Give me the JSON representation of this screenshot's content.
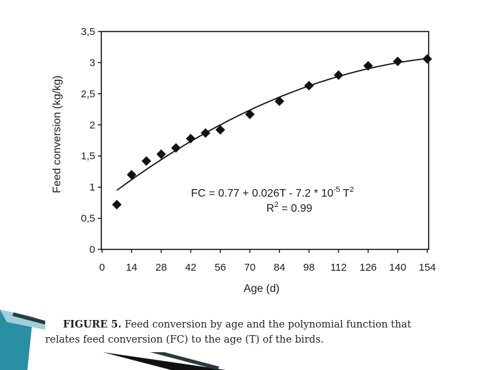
{
  "caption": {
    "figure_label": "FIGURE 5.",
    "line1": " Feed conversion by age and the polynomial function that",
    "line2": "relates feed conversion (FC)  to the age (T) of the birds."
  },
  "colors": {
    "accent_teal": "#2a8fa3",
    "accent_light": "#9fd0dc",
    "ink": "#111111"
  },
  "chart_data": {
    "type": "scatter",
    "title": "",
    "xlabel": "Age (d)",
    "ylabel": "Feed conversion (kg/kg)",
    "xlim": [
      0,
      154
    ],
    "ylim": [
      0,
      3.5
    ],
    "x_ticks": [
      0,
      14,
      28,
      42,
      56,
      70,
      84,
      98,
      112,
      126,
      140,
      154
    ],
    "x_tick_labels": [
      "0",
      "14",
      "28",
      "42",
      "56",
      "70",
      "84",
      "98",
      "112",
      "126",
      "140",
      "154"
    ],
    "y_ticks": [
      0,
      0.5,
      1,
      1.5,
      2,
      2.5,
      3,
      3.5
    ],
    "y_tick_labels": [
      "0",
      "0,5",
      "1",
      "1,5",
      "2",
      "2,5",
      "3",
      "3,5"
    ],
    "grid": false,
    "legend": "none",
    "series": [
      {
        "marker": "diamond",
        "points": [
          {
            "x": 7,
            "y": 0.72
          },
          {
            "x": 14,
            "y": 1.2
          },
          {
            "x": 21,
            "y": 1.42
          },
          {
            "x": 28,
            "y": 1.53
          },
          {
            "x": 35,
            "y": 1.63
          },
          {
            "x": 42,
            "y": 1.78
          },
          {
            "x": 49,
            "y": 1.87
          },
          {
            "x": 56,
            "y": 1.92
          },
          {
            "x": 70,
            "y": 2.17
          },
          {
            "x": 84,
            "y": 2.38
          },
          {
            "x": 98,
            "y": 2.63
          },
          {
            "x": 112,
            "y": 2.8
          },
          {
            "x": 126,
            "y": 2.95
          },
          {
            "x": 140,
            "y": 3.02
          },
          {
            "x": 154,
            "y": 3.06
          }
        ]
      }
    ],
    "fit": {
      "label_prefix": "FC = 0.77 + 0.026T - 7.2 * 10",
      "label_exp": "-5",
      "label_suffix": " T",
      "label_sq": "2",
      "r2_prefix": "R",
      "r2_sq": "2",
      "r2_suffix": " = 0.99",
      "intercept": 0.77,
      "linear": 0.026,
      "quadratic": -7.2e-05,
      "x_range": [
        7,
        154
      ]
    }
  }
}
